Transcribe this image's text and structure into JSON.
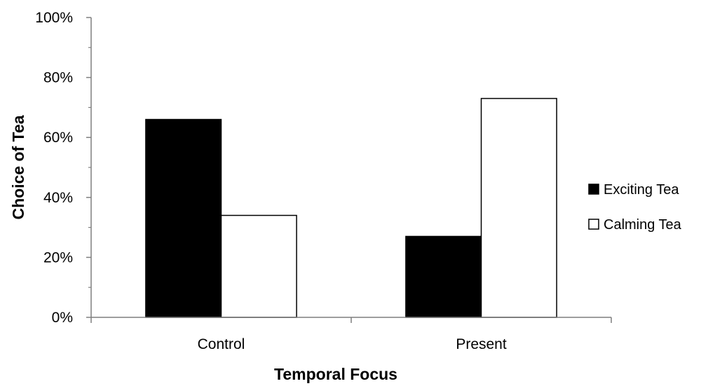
{
  "chart_data": {
    "type": "bar",
    "categories": [
      "Control",
      "Present"
    ],
    "series": [
      {
        "name": "Exciting Tea",
        "values": [
          66,
          27
        ],
        "color": "#000000"
      },
      {
        "name": "Calming Tea",
        "values": [
          34,
          73
        ],
        "color": "#ffffff"
      }
    ],
    "xlabel": "Temporal Focus",
    "ylabel": "Choice of Tea",
    "ylim": [
      0,
      100
    ],
    "yticks": [
      "0%",
      "20%",
      "40%",
      "60%",
      "80%",
      "100%"
    ],
    "ytick_values": [
      0,
      20,
      40,
      60,
      80,
      100
    ],
    "grid": false,
    "legend_position": "right"
  }
}
